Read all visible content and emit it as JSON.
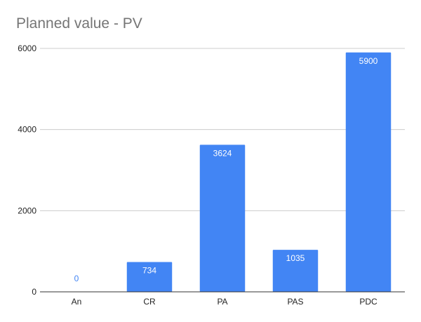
{
  "chart_data": {
    "type": "bar",
    "title": "Planned value - PV",
    "categories": [
      "An",
      "CR",
      "PA",
      "PAS",
      "PDC"
    ],
    "values": [
      0,
      734,
      3624,
      1035,
      5900
    ],
    "data_labels": [
      "0",
      "734",
      "3624",
      "1035",
      "5900"
    ],
    "xlabel": "",
    "ylabel": "",
    "ylim": [
      0,
      6000
    ],
    "yticks": [
      0,
      2000,
      4000,
      6000
    ],
    "ytick_labels": [
      "0",
      "2000",
      "4000",
      "6000"
    ],
    "grid": true,
    "legend": "none",
    "bar_color": "#4285f4",
    "label_inside_color": "#ffffff",
    "label_outside_color": "#4285f4",
    "grid_color": "#cccccc",
    "axis_color": "#333333"
  }
}
